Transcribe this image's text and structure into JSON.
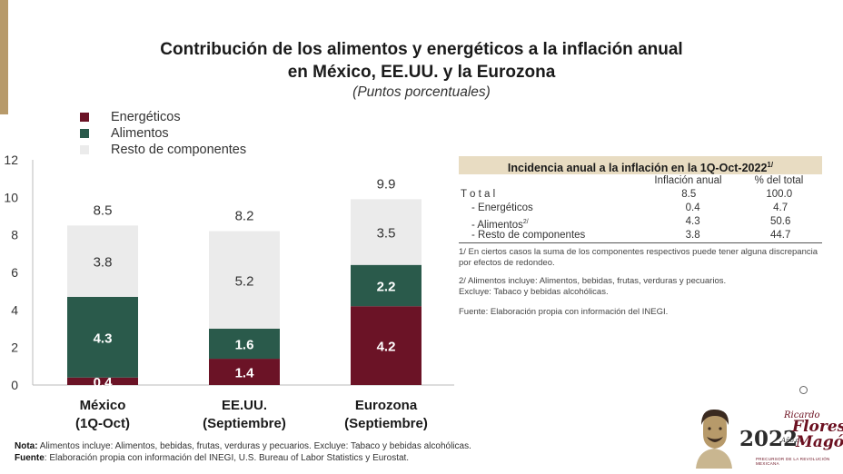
{
  "title_line1": "Contribución de los alimentos y energéticos a la inflación anual",
  "title_line2": "en México, EE.UU. y la Eurozona",
  "subtitle": "(Puntos porcentuales)",
  "colors": {
    "energeticos": "#6b1326",
    "alimentos": "#2a5a4b",
    "resto": "#ebebeb"
  },
  "chart_data": {
    "type": "bar",
    "stacked": true,
    "categories": [
      {
        "line1": "México",
        "line2": "(1Q-Oct)"
      },
      {
        "line1": "EE.UU.",
        "line2": "(Septiembre)"
      },
      {
        "line1": "Eurozona",
        "line2": "(Septiembre)"
      }
    ],
    "series": [
      {
        "name": "Energéticos",
        "values": [
          0.4,
          1.4,
          4.2
        ],
        "labels": [
          "0.4",
          "1.4",
          "4.2"
        ]
      },
      {
        "name": "Alimentos",
        "values": [
          4.3,
          1.6,
          2.2
        ],
        "labels": [
          "4.3",
          "1.6",
          "2.2"
        ]
      },
      {
        "name": "Resto de componentes",
        "values": [
          3.8,
          5.2,
          3.5
        ],
        "labels": [
          "3.8",
          "5.2",
          "3.5"
        ]
      }
    ],
    "totals": [
      "8.5",
      "8.2",
      "9.9"
    ],
    "ylim": [
      0,
      12
    ],
    "yticks": [
      "0",
      "2",
      "4",
      "6",
      "8",
      "10",
      "12"
    ],
    "legend_position": "top-left",
    "grid": false
  },
  "table": {
    "title": "Incidencia anual a la inflación en la 1Q-Oct-2022",
    "title_sup": "1/",
    "headers": [
      "",
      "Inflación anual",
      "% del total"
    ],
    "rows": [
      {
        "label": "T o t a l",
        "sup": "",
        "value": "8.5",
        "pct": "100.0"
      },
      {
        "label": "- Energéticos",
        "sup": "",
        "value": "0.4",
        "pct": "4.7"
      },
      {
        "label": "- Alimentos",
        "sup": "2/",
        "value": "4.3",
        "pct": "50.6"
      },
      {
        "label": "- Resto de componentes",
        "sup": "",
        "value": "3.8",
        "pct": "44.7"
      }
    ],
    "note1": "1/ En ciertos casos la suma de los componentes respectivos  puede tener alguna discrepancia por efectos de redondeo.",
    "note2a": "2/ Alimentos incluye: Alimentos, bebidas, frutas, verduras y pecuarios.",
    "note2b": "Excluye: Tabaco y bebidas alcohólicas.",
    "source": "Fuente: Elaboración propia con información del INEGI."
  },
  "footer": {
    "nota_label": "Nota:",
    "nota_text": " Alimentos incluye: Alimentos, bebidas, frutas, verduras y pecuarios. Excluye: Tabaco y bebidas alcohólicas.",
    "fuente_label": "Fuente",
    "fuente_text": ": Elaboración propia con información del INEGI, U.S. Bureau of Labor Statistics y Eurostat."
  },
  "logo": {
    "year": "2022",
    "ano": "Año de",
    "name1": "Ricardo",
    "name2": "Flores",
    "name3": "Magón",
    "tagline": "PRECURSOR DE LA REVOLUCIÓN MEXICANA",
    "icon": "portrait-icon"
  }
}
